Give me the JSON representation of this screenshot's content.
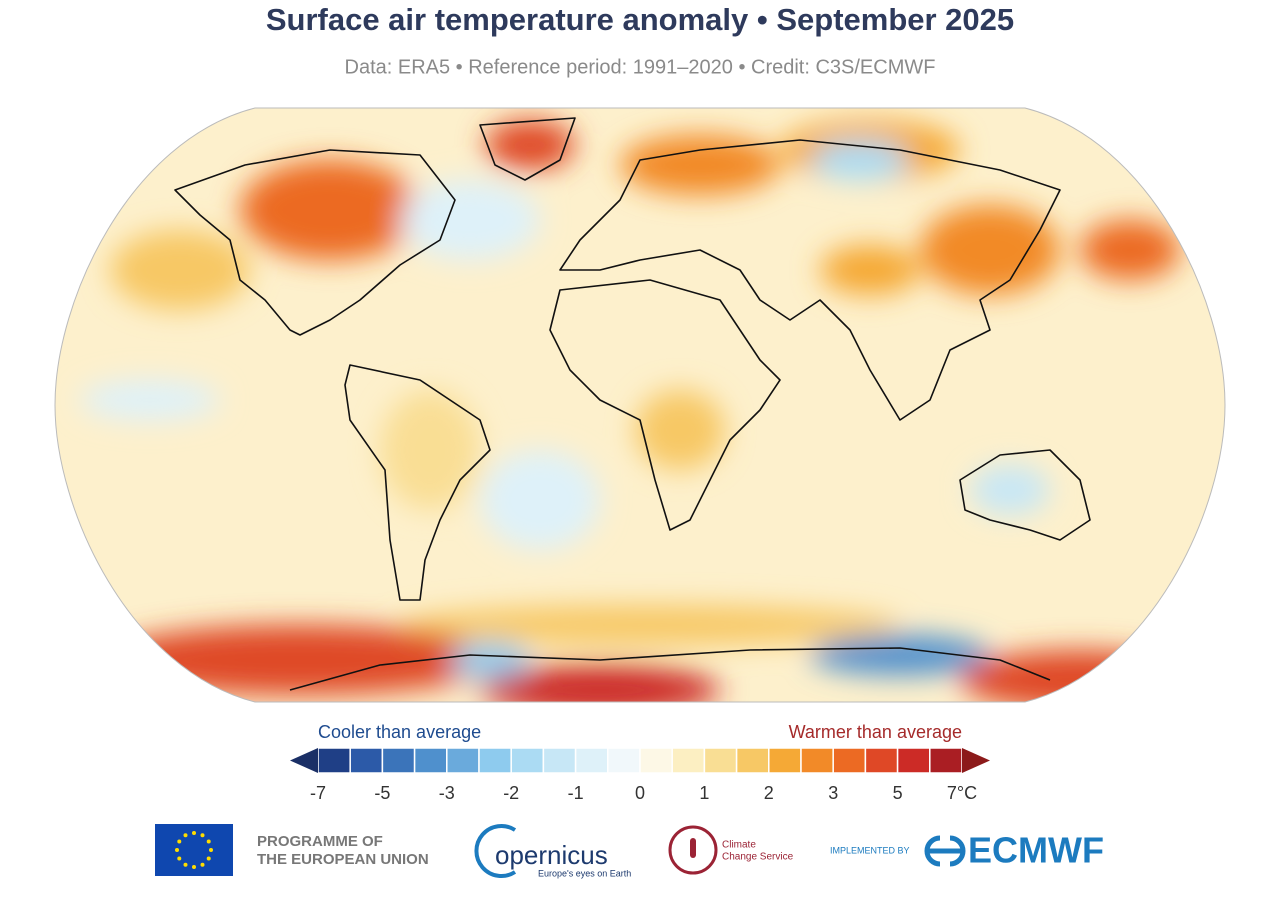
{
  "header": {
    "title": "Surface air temperature anomaly • September 2025",
    "subtitle": "Data: ERA5 • Reference period: 1991–2020 • Credit: C3S/ECMWF"
  },
  "legend": {
    "cooler": "Cooler than average",
    "warmer": "Warmer than average",
    "low_arrow_color": "#1a2f66",
    "high_arrow_color": "#8c1a1a",
    "colors": [
      "#1f3f86",
      "#2c5aa8",
      "#3b74ba",
      "#4f90cd",
      "#6aaadc",
      "#8ecbee",
      "#abdbf3",
      "#c7e7f6",
      "#def1f9",
      "#f1f8fb",
      "#fdf8e6",
      "#fcefc2",
      "#f9de94",
      "#f7c865",
      "#f5a936",
      "#f28a28",
      "#ec6a23",
      "#df4826",
      "#cc2b26",
      "#aa1e23"
    ],
    "ticks": [
      -7,
      -5,
      -3,
      -2,
      -1,
      0,
      1,
      2,
      3,
      5,
      {
        "value": 7,
        "label": "7°C"
      }
    ]
  },
  "footer": {
    "eu_line1": "PROGRAMME OF",
    "eu_line2": "THE EUROPEAN UNION",
    "copernicus": "opernicus",
    "copernicus_tagline": "Europe's eyes on Earth",
    "c3s_line1": "Climate",
    "c3s_line2": "Change Service",
    "implemented_by": "IMPLEMENTED BY",
    "ecmwf": "ECMWF"
  }
}
